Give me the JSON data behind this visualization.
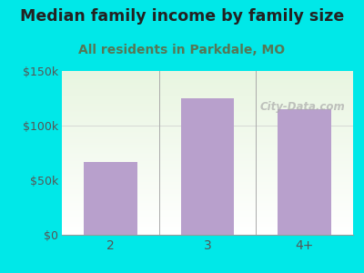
{
  "title": "Median family income by family size",
  "subtitle": "All residents in Parkdale, MO",
  "categories": [
    "2",
    "3",
    "4+"
  ],
  "values": [
    67000,
    125000,
    115000
  ],
  "bar_color": "#b8a0cc",
  "background_color": "#00e8e8",
  "plot_bg_top_left": "#e8f5e0",
  "plot_bg_bottom_right": "#f0f8f0",
  "plot_bg_white": "#ffffff",
  "title_color": "#222222",
  "subtitle_color": "#557755",
  "axis_color": "#555555",
  "tick_color": "#555555",
  "ylim": [
    0,
    150000
  ],
  "yticks": [
    0,
    50000,
    100000,
    150000
  ],
  "ytick_labels": [
    "$0",
    "$50k",
    "$100k",
    "$150k"
  ],
  "watermark": "City-Data.com",
  "title_fontsize": 12.5,
  "subtitle_fontsize": 10,
  "bar_width": 0.55
}
